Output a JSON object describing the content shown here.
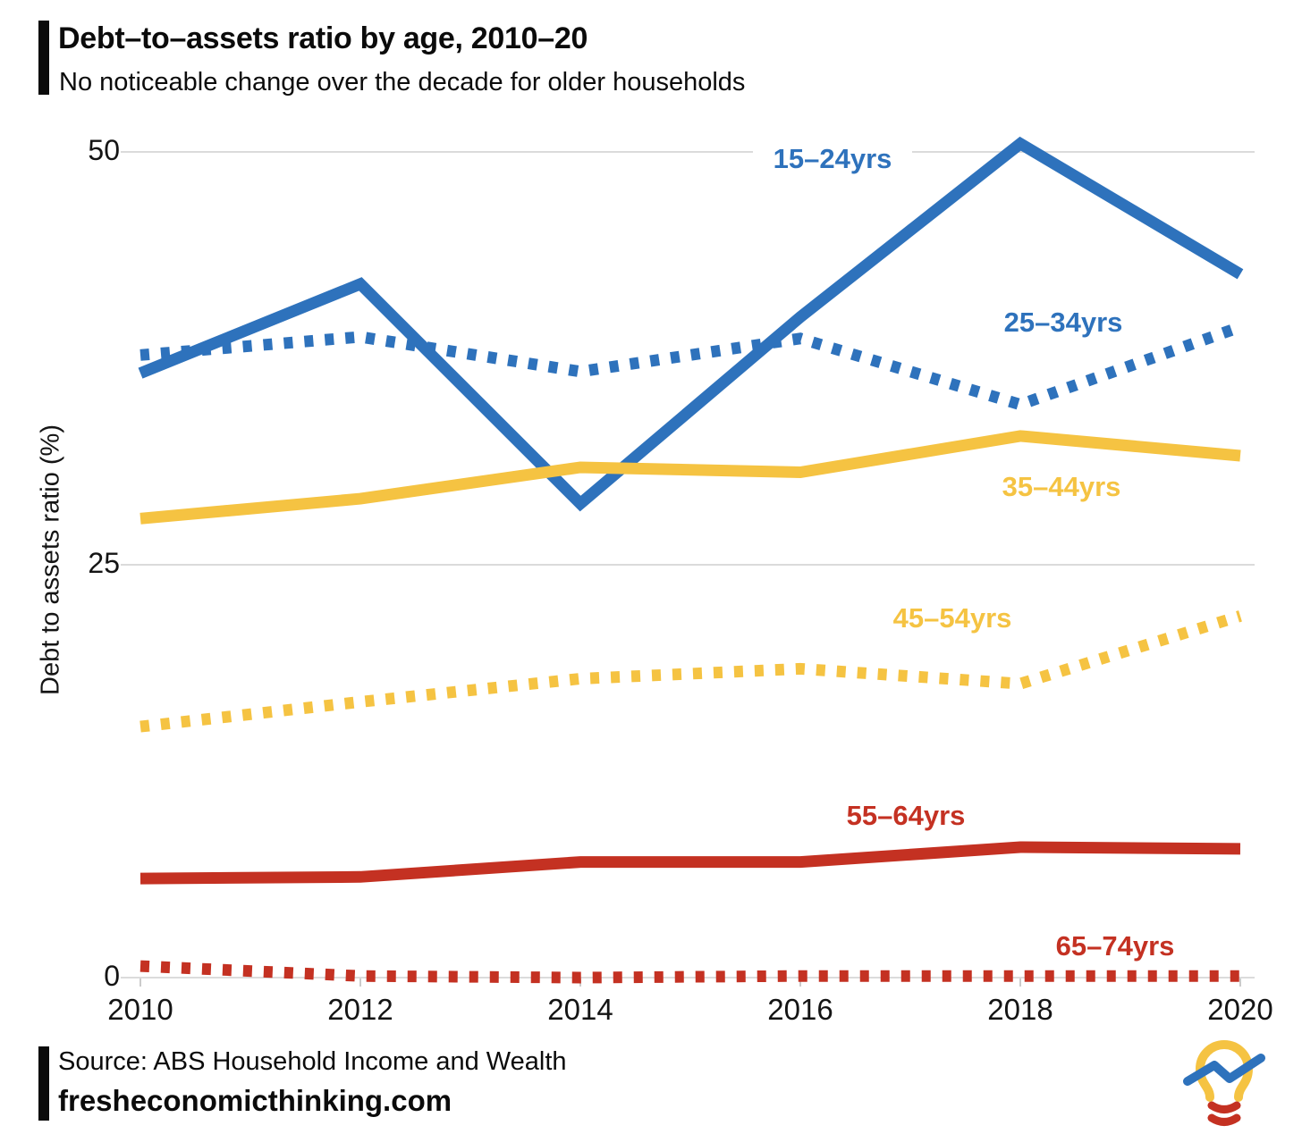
{
  "chart_data": {
    "type": "line",
    "title": "Debt–to–assets ratio by age, 2010–20",
    "subtitle": "No noticeable change over the decade for older households",
    "ylabel": "Debt to assets ratio (%)",
    "x_labels": [
      "2010",
      "2012",
      "2014",
      "2016",
      "2018",
      "2020"
    ],
    "x_years": [
      2010,
      2012,
      2014,
      2016,
      2018,
      2020
    ],
    "ylim": [
      0,
      52
    ],
    "yticks": [
      0,
      25,
      50
    ],
    "ytick_labels_top_down": [
      "50",
      "25",
      "0"
    ],
    "grid": "horizontal-only",
    "legend": "inline-colored-labels",
    "series": [
      {
        "name": "15–24yrs",
        "color": "#2E72BC",
        "line_style": "solid",
        "values": [
          36.6,
          42.0,
          28.7,
          40.0,
          50.5,
          42.6
        ]
      },
      {
        "name": "25–34yrs",
        "color": "#2E72BC",
        "line_style": "dotted",
        "values": [
          37.7,
          38.8,
          36.7,
          38.7,
          34.7,
          39.4
        ]
      },
      {
        "name": "35–44yrs",
        "color": "#F5C342",
        "line_style": "solid",
        "values": [
          27.8,
          29.0,
          30.9,
          30.6,
          32.8,
          31.6
        ]
      },
      {
        "name": "45–54yrs",
        "color": "#F5C342",
        "line_style": "dotted",
        "values": [
          15.2,
          16.7,
          18.1,
          18.7,
          17.8,
          21.9
        ]
      },
      {
        "name": "55–64yrs",
        "color": "#C43122",
        "line_style": "solid",
        "values": [
          6.0,
          6.1,
          7.0,
          7.0,
          7.9,
          7.8
        ]
      },
      {
        "name": "65–74yrs",
        "color": "#C43122",
        "line_style": "dotted",
        "values": [
          0.7,
          0.1,
          0.0,
          0.1,
          0.1,
          0.1
        ]
      }
    ]
  },
  "footer": {
    "source": "Source: ABS Household Income and Wealth",
    "website": "fresheconomicthinking.com"
  },
  "icons": {
    "logo": "fresh-economic-thinking-lightbulb-logo"
  },
  "colors": {
    "blue": "#2E72BC",
    "yellow": "#F5C342",
    "red": "#C43122",
    "grid": "#DBDBDB",
    "text": "#111111"
  }
}
